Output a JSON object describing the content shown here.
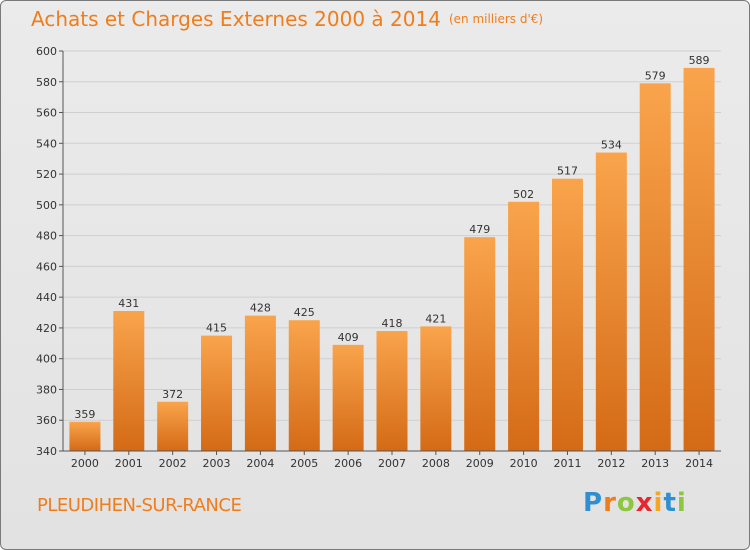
{
  "header": {
    "title": "Achats et Charges Externes 2000 à 2014",
    "unit": "(en milliers d'€)"
  },
  "footer": {
    "commune": "PLEUDIHEN-SUR-RANCE",
    "logo_letters": [
      "P",
      "r",
      "o",
      "x",
      "i",
      "t",
      "i"
    ],
    "logo_colors": [
      "#2f8fd0",
      "#f07d1c",
      "#8dc63f",
      "#e8262b",
      "#f5a623",
      "#2f8fd0",
      "#8dc63f"
    ]
  },
  "colors": {
    "title": "#f07d1c",
    "bar_top": "#f9a44c",
    "bar_bottom": "#d46a16",
    "grid": "#cfcfcf"
  },
  "chart_data": {
    "type": "bar",
    "title": "Achats et Charges Externes 2000 à 2014",
    "subtitle": "(en milliers d'€)",
    "categories": [
      "2000",
      "2001",
      "2002",
      "2003",
      "2004",
      "2005",
      "2006",
      "2007",
      "2008",
      "2009",
      "2010",
      "2011",
      "2012",
      "2013",
      "2014"
    ],
    "values": [
      359,
      431,
      372,
      415,
      428,
      425,
      409,
      418,
      421,
      479,
      502,
      517,
      534,
      579,
      589
    ],
    "ylim": [
      340,
      600
    ],
    "yticks": [
      340,
      360,
      380,
      400,
      420,
      440,
      460,
      480,
      500,
      520,
      540,
      560,
      580,
      600
    ],
    "grid": true,
    "xlabel": "",
    "ylabel": ""
  }
}
